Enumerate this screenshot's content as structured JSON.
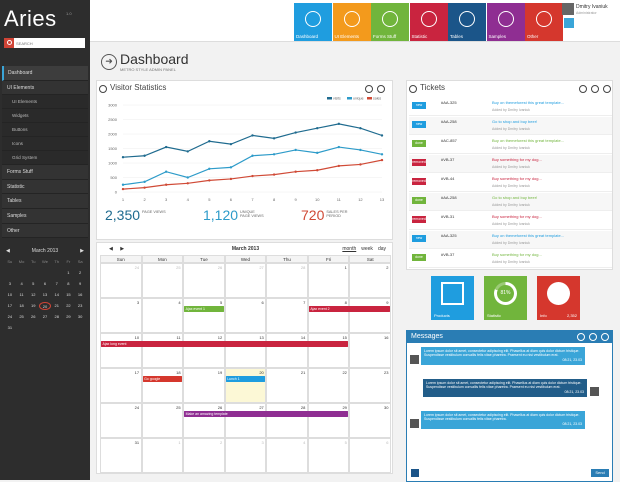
{
  "app": {
    "logo": "Aries",
    "version": "1.0"
  },
  "sidebar": {
    "search_placeholder": "SEARCH",
    "items": [
      {
        "label": "Dashboard",
        "active": true,
        "sub": false
      },
      {
        "label": "UI Elements",
        "active": false,
        "sub": false
      },
      {
        "label": "UI Elements",
        "active": false,
        "sub": true
      },
      {
        "label": "Widgets",
        "active": false,
        "sub": true
      },
      {
        "label": "Buttons",
        "active": false,
        "sub": true
      },
      {
        "label": "Icons",
        "active": false,
        "sub": true
      },
      {
        "label": "Grid System",
        "active": false,
        "sub": true
      },
      {
        "label": "Forms Stuff",
        "active": false,
        "sub": false
      },
      {
        "label": "Statistic",
        "active": false,
        "sub": false
      },
      {
        "label": "Tables",
        "active": false,
        "sub": false
      },
      {
        "label": "Samples",
        "active": false,
        "sub": false
      },
      {
        "label": "Other",
        "active": false,
        "sub": false
      }
    ],
    "calendar": {
      "title": "March 2013",
      "prev": "◀",
      "next": "▶",
      "weekdays": [
        "Su",
        "Mo",
        "Tu",
        "We",
        "Th",
        "Fr",
        "Sa"
      ],
      "days": [
        "",
        "",
        "",
        "",
        "",
        "1",
        "2",
        "3",
        "4",
        "5",
        "6",
        "7",
        "8",
        "9",
        "10",
        "11",
        "12",
        "13",
        "14",
        "15",
        "16",
        "17",
        "18",
        "19",
        "20",
        "21",
        "22",
        "23",
        "24",
        "25",
        "26",
        "27",
        "28",
        "29",
        "30",
        "31"
      ],
      "today": "20"
    }
  },
  "top": {
    "tiles": [
      {
        "label": "Dashboard",
        "color": "#1f9ddf",
        "icon": "monitor-icon"
      },
      {
        "label": "UI Elements",
        "color": "#f39a1c",
        "icon": "gear-icon"
      },
      {
        "label": "Forms Stuff",
        "color": "#71b53c",
        "icon": "pencil-icon"
      },
      {
        "label": "Statistic",
        "color": "#c9243f",
        "icon": "chart-icon"
      },
      {
        "label": "Tables",
        "color": "#1b5589",
        "icon": "grid-icon"
      },
      {
        "label": "Samples",
        "color": "#8f2e92",
        "icon": "camera-icon"
      },
      {
        "label": "Other",
        "color": "#d5372d",
        "icon": "cloud-icon"
      }
    ],
    "user": {
      "name": "Dmitry Ivaniuk",
      "role": "Administrator"
    }
  },
  "page": {
    "title": "Dashboard",
    "subtitle": "METRO STYLE ADMIN PANEL"
  },
  "stats_panel": {
    "title": "Visitor Statistics",
    "stats": [
      {
        "value": "2,350",
        "label": "PAGE VIEWS",
        "color": "#1f6b8f"
      },
      {
        "value": "1,120",
        "label": "UNIQUE PAGE VIEWS",
        "color": "#2d9bc9"
      },
      {
        "value": "720",
        "label": "SALES PER PERIOD",
        "color": "#d04a36"
      }
    ]
  },
  "chart_data": {
    "type": "line",
    "x": [
      1,
      2,
      3,
      4,
      5,
      6,
      7,
      8,
      9,
      10,
      11,
      12,
      13
    ],
    "ylim": [
      0,
      3000
    ],
    "yticks": [
      0,
      500,
      1000,
      1500,
      2000,
      2500,
      3000
    ],
    "series": [
      {
        "name": "visits",
        "color": "#1f6b8f",
        "values": [
          1200,
          1250,
          1550,
          1400,
          1750,
          1650,
          1950,
          1850,
          2050,
          2200,
          2350,
          2200,
          1950
        ]
      },
      {
        "name": "unique",
        "color": "#2d9bc9",
        "values": [
          250,
          350,
          700,
          500,
          800,
          850,
          1250,
          1300,
          1450,
          1350,
          1550,
          1450,
          1300
        ]
      },
      {
        "name": "sales",
        "color": "#d04a36",
        "values": [
          100,
          150,
          250,
          300,
          400,
          450,
          550,
          600,
          700,
          750,
          900,
          950,
          1100
        ]
      }
    ]
  },
  "calendar": {
    "title": "March 2013",
    "prev": "◀",
    "next": "▶",
    "views": [
      "month",
      "week",
      "day"
    ],
    "weekdays": [
      "Sun",
      "Mon",
      "Tue",
      "Wed",
      "Thu",
      "Fri",
      "Sat"
    ],
    "weeks": [
      [
        "24",
        "25",
        "26",
        "27",
        "28",
        "1",
        "2"
      ],
      [
        "3",
        "4",
        "5",
        "6",
        "7",
        "8",
        "9"
      ],
      [
        "10",
        "11",
        "12",
        "13",
        "14",
        "15",
        "16"
      ],
      [
        "17",
        "18",
        "19",
        "20",
        "21",
        "22",
        "23"
      ],
      [
        "24",
        "25",
        "26",
        "27",
        "28",
        "29",
        "30"
      ],
      [
        "31",
        "1",
        "2",
        "3",
        "4",
        "5",
        "6"
      ]
    ],
    "events": [
      {
        "label": "Ajax event 1",
        "row": 1,
        "col": 2,
        "span": 1,
        "color": "#71b53c"
      },
      {
        "label": "Ajax event 2",
        "row": 1,
        "col": 5,
        "span": 2,
        "color": "#c9243f"
      },
      {
        "label": "Ajax long event",
        "row": 2,
        "col": 0,
        "span": 6,
        "color": "#c9243f"
      },
      {
        "label": "Go google",
        "row": 3,
        "col": 1,
        "span": 1,
        "color": "#d5372d"
      },
      {
        "label": "Lunch 1",
        "row": 3,
        "col": 3,
        "span": 1,
        "color": "#1f9ddf"
      },
      {
        "label": "Make an amazing template",
        "row": 4,
        "col": 2,
        "span": 4,
        "color": "#8f2e92"
      }
    ]
  },
  "tickets": {
    "title": "Tickets",
    "rows": [
      {
        "status": "new",
        "color": "#1f9ddf",
        "id": "#AA-325",
        "text": "Buy on themeforest this great template...",
        "by": "Added by Dmitry Ivaniuk",
        "tcolor": "#1f9ddf"
      },
      {
        "status": "new",
        "color": "#1f9ddf",
        "id": "#AA-258",
        "text": "Go to shop and buy beer!",
        "by": "Added by Dmitry Ivaniuk",
        "tcolor": "#1f9ddf"
      },
      {
        "status": "done",
        "color": "#71b53c",
        "id": "#AC-857",
        "text": "Buy on themeforest this great template...",
        "by": "Added by Dmitry Ivaniuk",
        "tcolor": "#71b53c"
      },
      {
        "status": "removed",
        "color": "#c9243f",
        "id": "#VB-37",
        "text": "Buy something for my dog...",
        "by": "Added by Dmitry Ivaniuk",
        "tcolor": "#c9243f"
      },
      {
        "status": "removed",
        "color": "#c9243f",
        "id": "#VB-44",
        "text": "Buy something for my dog...",
        "by": "Added by Dmitry Ivaniuk",
        "tcolor": "#c9243f"
      },
      {
        "status": "done",
        "color": "#71b53c",
        "id": "#AA-258",
        "text": "Go to shop and buy beer!",
        "by": "Added by Dmitry Ivaniuk",
        "tcolor": "#71b53c"
      },
      {
        "status": "removed",
        "color": "#c9243f",
        "id": "#VB-31",
        "text": "Buy something for my dog...",
        "by": "Added by Dmitry Ivaniuk",
        "tcolor": "#c9243f"
      },
      {
        "status": "new",
        "color": "#1f9ddf",
        "id": "#AA-325",
        "text": "Buy on themeforest this great template...",
        "by": "Added by Dmitry Ivaniuk",
        "tcolor": "#1f9ddf"
      },
      {
        "status": "done",
        "color": "#71b53c",
        "id": "#VB-37",
        "text": "Buy something for my dog...",
        "by": "Added by Dmitry Ivaniuk",
        "tcolor": "#71b53c"
      }
    ]
  },
  "stat_tiles": [
    {
      "label": "Products",
      "value": "",
      "color": "#1f9ddf",
      "icon": "box-icon"
    },
    {
      "label": "Statistic",
      "value": "",
      "color": "#71b53c",
      "icon": "donut-icon",
      "percent": 81,
      "ptext": "81%"
    },
    {
      "label": "Info",
      "value": "2,352",
      "color": "#d5372d",
      "icon": "info-icon"
    }
  ],
  "messages": {
    "title": "Messages",
    "send": "Send",
    "items": [
      {
        "side": "l",
        "text": "Lorem ipsum dolor sit amet, consectetur adipiscing elit. Phasellus at diam quis dolor dictum tristique. Suspendisse vestibulum convallis felis vitae pharetra. Praesent eu nisi vestibulum erat.",
        "time": "08:21, 23.03"
      },
      {
        "side": "r",
        "text": "Lorem ipsum dolor sit amet, consectetur adipiscing elit. Phasellus at diam quis dolor dictum tristique. Suspendisse vestibulum convallis felis vitae pharetra. Praesent eu nisi vestibulum erat.",
        "time": "08:21, 23.03"
      },
      {
        "side": "l",
        "text": "Lorem ipsum dolor sit amet, consectetur adipiscing elit. Phasellus at diam quis dolor dictum tristique. Suspendisse vestibulum convallis felis vitae pharetra.",
        "time": "08:21, 23.03"
      }
    ]
  }
}
